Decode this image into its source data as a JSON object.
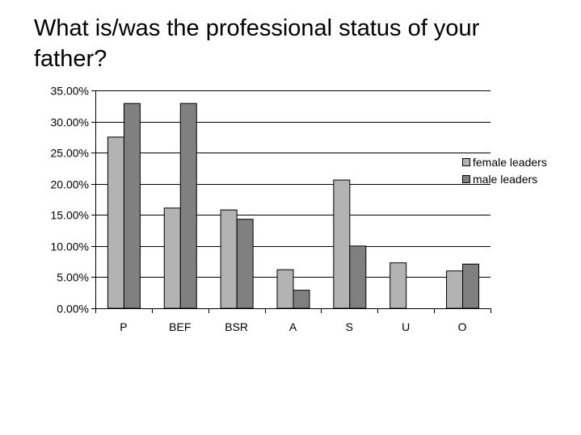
{
  "chart_data": {
    "type": "bar",
    "title": "What is/was the professional status of your father?",
    "categories": [
      "P",
      "BEF",
      "BSR",
      "A",
      "S",
      "U",
      "O"
    ],
    "series": [
      {
        "name": "female leaders",
        "values": [
          0.275,
          0.161,
          0.158,
          0.062,
          0.206,
          0.073,
          0.06
        ],
        "color": "#b3b3b3"
      },
      {
        "name": "male leaders",
        "values": [
          0.329,
          0.329,
          0.143,
          0.029,
          0.1,
          0.0,
          0.071
        ],
        "color": "#808080"
      }
    ],
    "ylim": [
      0,
      0.35
    ],
    "yticks": [
      0,
      0.05,
      0.1,
      0.15,
      0.2,
      0.25,
      0.3,
      0.35
    ],
    "ytick_labels": [
      "0.00%",
      "5.00%",
      "10.00%",
      "15.00%",
      "20.00%",
      "25.00%",
      "30.00%",
      "35.00%"
    ],
    "grid": true,
    "legend": "right"
  }
}
